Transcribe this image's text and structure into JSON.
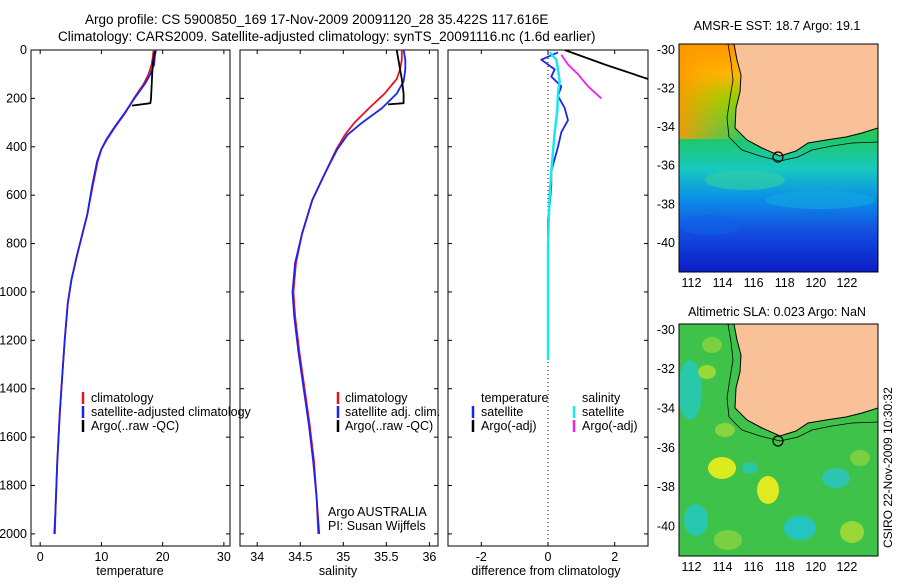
{
  "header": {
    "line1": "Argo profile: CS 5900850_169 17-Nov-2009 20091120_28 35.422S 117.616E",
    "line2": "Climatology: CARS2009. Satellite-adjusted climatology: synTS_20091116.nc (1.6d earlier)"
  },
  "footer": {
    "credit": "CSIRO 22-Nov-2009 10:30:32"
  },
  "colors": {
    "red": "#e8141a",
    "blue": "#1a24f0",
    "black": "#000000",
    "cyan": "#18e8f0",
    "magenta": "#f020f0",
    "land": "#f9c197"
  },
  "chart_data": [
    {
      "type": "line",
      "id": "temperature",
      "xlabel": "temperature",
      "ylabel": "",
      "xlim": [
        -1.5,
        31
      ],
      "ylim": [
        2050,
        0
      ],
      "xticks": [
        0,
        10,
        20,
        30
      ],
      "yticks": [
        0,
        200,
        400,
        600,
        800,
        1000,
        1200,
        1400,
        1600,
        1800,
        2000
      ],
      "legend": {
        "position": "lower-right",
        "entries": [
          "climatology",
          "satellite-adjusted climatology",
          "Argo(..raw -QC)"
        ]
      },
      "series": [
        {
          "name": "climatology",
          "color": "red",
          "points": [
            [
              18.5,
              0
            ],
            [
              18.4,
              30
            ],
            [
              18.2,
              60
            ],
            [
              17.7,
              100
            ],
            [
              16.9,
              140
            ],
            [
              15.3,
              200
            ],
            [
              13.9,
              260
            ],
            [
              12.2,
              320
            ],
            [
              10.9,
              370
            ],
            [
              10.0,
              410
            ],
            [
              9.4,
              460
            ],
            [
              8.6,
              560
            ],
            [
              7.7,
              680
            ],
            [
              6.9,
              760
            ],
            [
              6.0,
              850
            ],
            [
              5.1,
              950
            ],
            [
              4.5,
              1050
            ],
            [
              4.0,
              1200
            ],
            [
              3.6,
              1350
            ],
            [
              3.2,
              1500
            ],
            [
              2.8,
              1700
            ],
            [
              2.5,
              1900
            ],
            [
              2.4,
              2000
            ]
          ]
        },
        {
          "name": "satellite-adjusted climatology",
          "color": "blue",
          "points": [
            [
              18.9,
              0
            ],
            [
              18.7,
              30
            ],
            [
              18.6,
              60
            ],
            [
              18.0,
              100
            ],
            [
              17.1,
              140
            ],
            [
              15.4,
              200
            ],
            [
              13.8,
              260
            ],
            [
              12.1,
              320
            ],
            [
              10.8,
              370
            ],
            [
              10.0,
              410
            ],
            [
              9.3,
              460
            ],
            [
              8.5,
              560
            ],
            [
              7.7,
              680
            ],
            [
              6.9,
              760
            ],
            [
              6.0,
              850
            ],
            [
              5.1,
              950
            ],
            [
              4.5,
              1050
            ],
            [
              4.0,
              1200
            ],
            [
              3.6,
              1350
            ],
            [
              3.2,
              1500
            ],
            [
              2.8,
              1700
            ],
            [
              2.5,
              1900
            ],
            [
              2.3,
              2000
            ]
          ]
        },
        {
          "name": "Argo(..raw -QC)",
          "color": "black",
          "points": [
            [
              18.8,
              5
            ],
            [
              18.6,
              20
            ],
            [
              18.4,
              60
            ],
            [
              18.3,
              100
            ],
            [
              18.2,
              150
            ],
            [
              18.1,
              200
            ],
            [
              18.0,
              220
            ],
            [
              15.0,
              230
            ]
          ]
        }
      ]
    },
    {
      "type": "line",
      "id": "salinity",
      "xlabel": "salinity",
      "ylabel": "",
      "xlim": [
        33.8,
        36.1
      ],
      "ylim": [
        2050,
        0
      ],
      "xticks": [
        34,
        34.5,
        35,
        35.5,
        36
      ],
      "yticks": [
        0,
        200,
        400,
        600,
        800,
        1000,
        1200,
        1400,
        1600,
        1800,
        2000
      ],
      "legend": {
        "position": "lower-right",
        "entries": [
          "climatology",
          "satellite adj. clim.",
          "Argo(..raw -QC)"
        ]
      },
      "annotations": [
        "Argo AUSTRALIA",
        "PI: Susan Wijffels"
      ],
      "series": [
        {
          "name": "climatology",
          "color": "red",
          "points": [
            [
              35.68,
              0
            ],
            [
              35.68,
              40
            ],
            [
              35.66,
              80
            ],
            [
              35.62,
              120
            ],
            [
              35.48,
              180
            ],
            [
              35.3,
              240
            ],
            [
              35.13,
              300
            ],
            [
              35.02,
              350
            ],
            [
              34.92,
              410
            ],
            [
              34.8,
              500
            ],
            [
              34.64,
              620
            ],
            [
              34.52,
              760
            ],
            [
              34.45,
              880
            ],
            [
              34.42,
              1000
            ],
            [
              34.44,
              1100
            ],
            [
              34.49,
              1250
            ],
            [
              34.55,
              1400
            ],
            [
              34.61,
              1550
            ],
            [
              34.66,
              1700
            ],
            [
              34.69,
              1850
            ],
            [
              34.71,
              2000
            ]
          ]
        },
        {
          "name": "satellite adj. clim.",
          "color": "blue",
          "points": [
            [
              35.7,
              0
            ],
            [
              35.72,
              40
            ],
            [
              35.72,
              80
            ],
            [
              35.7,
              130
            ],
            [
              35.62,
              180
            ],
            [
              35.45,
              240
            ],
            [
              35.22,
              300
            ],
            [
              35.05,
              350
            ],
            [
              34.93,
              410
            ],
            [
              34.8,
              500
            ],
            [
              34.64,
              620
            ],
            [
              34.52,
              760
            ],
            [
              34.44,
              880
            ],
            [
              34.41,
              1000
            ],
            [
              34.43,
              1100
            ],
            [
              34.48,
              1250
            ],
            [
              34.54,
              1400
            ],
            [
              34.6,
              1550
            ],
            [
              34.65,
              1700
            ],
            [
              34.69,
              1850
            ],
            [
              34.72,
              2000
            ]
          ]
        },
        {
          "name": "Argo(..raw -QC)",
          "color": "black",
          "points": [
            [
              35.62,
              0
            ],
            [
              35.64,
              40
            ],
            [
              35.66,
              80
            ],
            [
              35.68,
              120
            ],
            [
              35.7,
              180
            ],
            [
              35.7,
              220
            ],
            [
              35.52,
              225
            ]
          ]
        }
      ]
    },
    {
      "type": "line",
      "id": "difference",
      "xlabel": "difference from climatology",
      "ylabel": "",
      "xlim": [
        -3.0,
        3.0
      ],
      "ylim": [
        2050,
        0
      ],
      "xticks": [
        -2,
        0,
        2
      ],
      "yticks": [
        0,
        200,
        400,
        600,
        800,
        1000,
        1200,
        1400,
        1600,
        1800,
        2000
      ],
      "legend": {
        "position": "lower-center",
        "col1": [
          "temperature",
          "satellite",
          "Argo(-adj)"
        ],
        "col2": [
          "salinity",
          "satellite",
          "Argo(-adj)"
        ]
      },
      "series": [
        {
          "name": "temperature satellite",
          "color": "blue",
          "points": [
            [
              0.3,
              10
            ],
            [
              -0.2,
              40
            ],
            [
              0.2,
              80
            ],
            [
              0.1,
              110
            ],
            [
              0.4,
              150
            ],
            [
              0.3,
              190
            ],
            [
              0.5,
              240
            ],
            [
              0.6,
              290
            ],
            [
              0.4,
              340
            ],
            [
              0.3,
              400
            ],
            [
              0.2,
              450
            ],
            [
              0.1,
              500
            ],
            [
              0.1,
              560
            ],
            [
              0.05,
              640
            ],
            [
              0.0,
              700
            ],
            [
              0.0,
              780
            ],
            [
              0.0,
              880
            ],
            [
              0.0,
              1000
            ],
            [
              0.0,
              1150
            ],
            [
              0.0,
              1280
            ]
          ]
        },
        {
          "name": "temperature Argo(-adj)",
          "color": "black",
          "points": [
            [
              0.5,
              0
            ],
            [
              1.7,
              60
            ],
            [
              3.0,
              120
            ]
          ]
        },
        {
          "name": "salinity satellite",
          "color": "cyan",
          "points": [
            [
              0.05,
              10
            ],
            [
              0.25,
              40
            ],
            [
              0.3,
              80
            ],
            [
              0.35,
              130
            ],
            [
              0.3,
              180
            ],
            [
              0.28,
              250
            ],
            [
              0.2,
              340
            ],
            [
              0.15,
              420
            ],
            [
              0.1,
              500
            ],
            [
              0.05,
              600
            ],
            [
              0.02,
              700
            ],
            [
              0.0,
              820
            ],
            [
              0.0,
              950
            ],
            [
              0.0,
              1100
            ],
            [
              0.0,
              1280
            ]
          ]
        },
        {
          "name": "salinity Argo(-adj)",
          "color": "magenta",
          "points": [
            [
              0.4,
              20
            ],
            [
              0.6,
              60
            ],
            [
              0.9,
              100
            ],
            [
              1.2,
              150
            ],
            [
              1.6,
              200
            ]
          ]
        }
      ]
    },
    {
      "type": "heatmap",
      "id": "sst-map",
      "title": "AMSR-E SST: 18.7 Argo: 19.1",
      "xlim": [
        111.2,
        124
      ],
      "ylim": [
        -41.5,
        -29.7
      ],
      "xticks": [
        112,
        114,
        116,
        118,
        120,
        122
      ],
      "yticks": [
        -30,
        -32,
        -34,
        -36,
        -38,
        -40
      ],
      "marker": [
        117.6,
        -35.4
      ]
    },
    {
      "type": "heatmap",
      "id": "sla-map",
      "title": "Altimetric SLA: 0.023 Argo: NaN",
      "xlim": [
        111.2,
        124
      ],
      "ylim": [
        -41.5,
        -29.7
      ],
      "xticks": [
        112,
        114,
        116,
        118,
        120,
        122
      ],
      "yticks": [
        -30,
        -32,
        -34,
        -36,
        -38,
        -40
      ],
      "marker": [
        117.6,
        -35.4
      ]
    }
  ]
}
